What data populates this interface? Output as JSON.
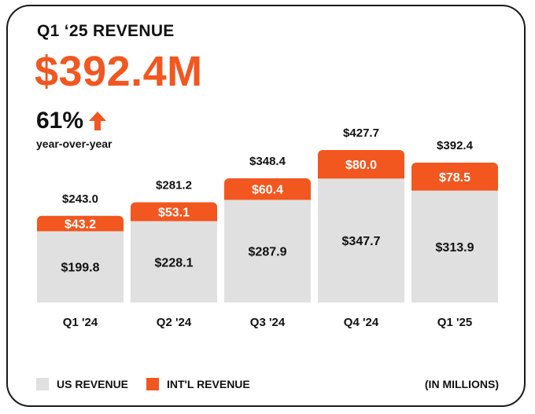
{
  "header": {
    "title": "Q1 ‘25 REVENUE",
    "headline_value": "$392.4M",
    "yoy_value": "61%",
    "yoy_label": "year-over-year",
    "yoy_icon": "arrow-up-icon"
  },
  "colors": {
    "us": "#e0e0e0",
    "intl": "#f1571f",
    "text": "#111111"
  },
  "chart_data": {
    "type": "bar",
    "stacked": true,
    "title": "Q1 ‘25 REVENUE",
    "categories": [
      "Q1 '24",
      "Q2 '24",
      "Q3 '24",
      "Q4 '24",
      "Q1 '25"
    ],
    "series": [
      {
        "name": "US REVENUE",
        "values": [
          199.8,
          228.1,
          287.9,
          347.7,
          313.9
        ],
        "labels": [
          "$199.8",
          "$228.1",
          "$287.9",
          "$347.7",
          "$313.9"
        ]
      },
      {
        "name": "INT'L REVENUE",
        "values": [
          43.2,
          53.1,
          60.4,
          80.0,
          78.5
        ],
        "labels": [
          "$43.2",
          "$53.1",
          "$60.4",
          "$80.0",
          "$78.5"
        ]
      }
    ],
    "totals": [
      243.0,
      281.2,
      348.4,
      427.7,
      392.4
    ],
    "total_labels": [
      "$243.0",
      "$281.2",
      "$348.4",
      "$427.7",
      "$392.4"
    ],
    "ylim": [
      0,
      427.7
    ],
    "xlabel": "",
    "ylabel": "",
    "grid": false,
    "legend": [
      "US REVENUE",
      "INT'L REVENUE"
    ],
    "legend_position": "bottom-left",
    "unit_note": "(IN MILLIONS)"
  }
}
